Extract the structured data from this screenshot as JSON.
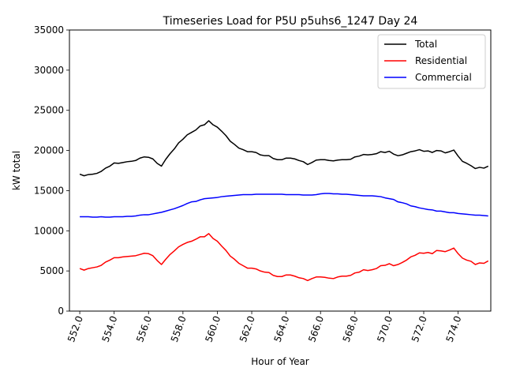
{
  "chart_data": {
    "type": "line",
    "title": "Timeseries Load for P5U p5uhs6_1247  Day 24",
    "xlabel": "Hour of Year",
    "ylabel": "kW total",
    "xlim": [
      551.4,
      575.9
    ],
    "ylim": [
      0,
      35000
    ],
    "x_ticks": [
      552,
      554,
      556,
      558,
      560,
      562,
      564,
      566,
      568,
      570,
      572,
      574
    ],
    "x_tick_labels": [
      "552.0",
      "554.0",
      "556.0",
      "558.0",
      "560.0",
      "562.0",
      "564.0",
      "566.0",
      "568.0",
      "570.0",
      "572.0",
      "574.0"
    ],
    "y_ticks": [
      0,
      5000,
      10000,
      15000,
      20000,
      25000,
      30000,
      35000
    ],
    "y_tick_labels": [
      "0",
      "5000",
      "10000",
      "15000",
      "20000",
      "25000",
      "30000",
      "35000"
    ],
    "legend_position": "top-right",
    "x": [
      552.0,
      552.25,
      552.5,
      552.75,
      553.0,
      553.25,
      553.5,
      553.75,
      554.0,
      554.25,
      554.5,
      554.75,
      555.0,
      555.25,
      555.5,
      555.75,
      556.0,
      556.25,
      556.5,
      556.75,
      557.0,
      557.25,
      557.5,
      557.75,
      558.0,
      558.25,
      558.5,
      558.75,
      559.0,
      559.25,
      559.5,
      559.75,
      560.0,
      560.25,
      560.5,
      560.75,
      561.0,
      561.25,
      561.5,
      561.75,
      562.0,
      562.25,
      562.5,
      562.75,
      563.0,
      563.25,
      563.5,
      563.75,
      564.0,
      564.25,
      564.5,
      564.75,
      565.0,
      565.25,
      565.5,
      565.75,
      566.0,
      566.25,
      566.5,
      566.75,
      567.0,
      567.25,
      567.5,
      567.75,
      568.0,
      568.25,
      568.5,
      568.75,
      569.0,
      569.25,
      569.5,
      569.75,
      570.0,
      570.25,
      570.5,
      570.75,
      571.0,
      571.25,
      571.5,
      571.75,
      572.0,
      572.25,
      572.5,
      572.75,
      573.0,
      573.25,
      573.5,
      573.75,
      574.0,
      574.25,
      574.5,
      574.75,
      575.0,
      575.25,
      575.5,
      575.75
    ],
    "series": [
      {
        "name": "Total",
        "color": "#000000",
        "values": [
          17050,
          16850,
          17000,
          17050,
          17150,
          17400,
          17800,
          18050,
          18450,
          18400,
          18500,
          18600,
          18650,
          18750,
          19050,
          19200,
          19150,
          18950,
          18400,
          18050,
          18900,
          19600,
          20200,
          20950,
          21400,
          21950,
          22250,
          22550,
          23050,
          23200,
          23700,
          23200,
          22900,
          22400,
          21850,
          21150,
          20750,
          20300,
          20100,
          19850,
          19850,
          19750,
          19450,
          19350,
          19350,
          19000,
          18850,
          18850,
          19050,
          19050,
          18950,
          18750,
          18600,
          18250,
          18500,
          18800,
          18850,
          18850,
          18750,
          18700,
          18800,
          18850,
          18850,
          18900,
          19200,
          19300,
          19500,
          19450,
          19500,
          19600,
          19850,
          19750,
          19900,
          19550,
          19350,
          19450,
          19650,
          19850,
          19950,
          20100,
          19900,
          19950,
          19750,
          20000,
          19950,
          19700,
          19850,
          20050,
          19300,
          18650,
          18400,
          18100,
          17750,
          17900,
          17800,
          18050
        ]
      },
      {
        "name": "Residential",
        "color": "#ff0000",
        "values": [
          5300,
          5100,
          5300,
          5400,
          5500,
          5700,
          6100,
          6350,
          6650,
          6650,
          6750,
          6800,
          6850,
          6900,
          7050,
          7200,
          7150,
          6900,
          6300,
          5800,
          6450,
          7050,
          7500,
          8000,
          8300,
          8550,
          8700,
          8950,
          9250,
          9250,
          9650,
          9050,
          8700,
          8100,
          7550,
          6850,
          6450,
          5950,
          5650,
          5350,
          5350,
          5250,
          5000,
          4850,
          4800,
          4450,
          4300,
          4300,
          4500,
          4500,
          4350,
          4150,
          4050,
          3800,
          4050,
          4250,
          4250,
          4200,
          4100,
          4050,
          4250,
          4350,
          4350,
          4450,
          4750,
          4850,
          5150,
          5050,
          5150,
          5300,
          5650,
          5700,
          5900,
          5650,
          5800,
          6050,
          6350,
          6750,
          6950,
          7250,
          7200,
          7300,
          7150,
          7550,
          7500,
          7400,
          7600,
          7850,
          7150,
          6600,
          6350,
          6200,
          5800,
          6000,
          5950,
          6250
        ]
      },
      {
        "name": "Commercial",
        "color": "#0000ff",
        "values": [
          11750,
          11750,
          11750,
          11700,
          11700,
          11750,
          11700,
          11700,
          11750,
          11750,
          11750,
          11800,
          11800,
          11850,
          11950,
          12000,
          12000,
          12100,
          12200,
          12300,
          12450,
          12600,
          12750,
          12950,
          13150,
          13400,
          13600,
          13650,
          13850,
          14000,
          14050,
          14100,
          14150,
          14250,
          14300,
          14350,
          14400,
          14450,
          14500,
          14500,
          14500,
          14550,
          14550,
          14550,
          14550,
          14550,
          14550,
          14550,
          14500,
          14500,
          14500,
          14500,
          14450,
          14450,
          14450,
          14500,
          14600,
          14650,
          14650,
          14600,
          14600,
          14550,
          14550,
          14500,
          14450,
          14400,
          14350,
          14350,
          14350,
          14300,
          14250,
          14100,
          14000,
          13900,
          13600,
          13500,
          13350,
          13100,
          13000,
          12850,
          12750,
          12650,
          12600,
          12450,
          12450,
          12350,
          12250,
          12250,
          12150,
          12100,
          12050,
          12000,
          11950,
          11950,
          11900,
          11850
        ]
      }
    ]
  }
}
